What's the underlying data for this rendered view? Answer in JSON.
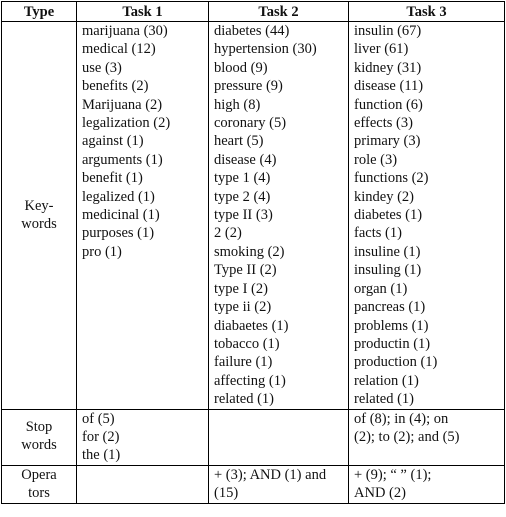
{
  "headers": [
    "Type",
    "Task 1",
    "Task 2",
    "Task 3"
  ],
  "rows": [
    {
      "type": "Key-words",
      "task1": [
        "marijuana (30)",
        "medical (12)",
        "use (3)",
        "benefits (2)",
        "Marijuana (2)",
        "legalization (2)",
        "against (1)",
        "arguments (1)",
        "benefit (1)",
        "legalized (1)",
        "medicinal (1)",
        "purposes (1)",
        "pro (1)"
      ],
      "task2": [
        "diabetes (44)",
        "hypertension (30)",
        "blood (9)",
        "pressure (9)",
        "high (8)",
        "coronary (5)",
        "heart (5)",
        "disease (4)",
        "type 1 (4)",
        "type 2 (4)",
        "type II (3)",
        "2 (2)",
        "smoking (2)",
        "Type II (2)",
        "type I (2)",
        "type ii (2)",
        "diabaetes (1)",
        "tobacco (1)",
        "failure (1)",
        "affecting (1)",
        "related (1)"
      ],
      "task3": [
        "insulin (67)",
        "liver (61)",
        "kidney (31)",
        "disease (11)",
        "function (6)",
        "effects (3)",
        "primary (3)",
        "role (3)",
        "functions (2)",
        "kindey (2)",
        "diabetes (1)",
        "facts (1)",
        "insuline (1)",
        "insuling (1)",
        "organ (1)",
        "pancreas (1)",
        "problems (1)",
        "productin (1)",
        "production (1)",
        "relation (1)",
        "related (1)"
      ]
    },
    {
      "type": "Stop words",
      "task1": [
        "of (5)",
        "for (2)",
        "the (1)"
      ],
      "task2": [],
      "task3_text": "of (8); in (4); on (2); to (2); and (5)"
    },
    {
      "type": "Opera tors",
      "task1": [],
      "task2_text": "+ (3);  AND (1) and (15)",
      "task3_text": "+ (9);  “ ” (1); AND (2)"
    }
  ]
}
